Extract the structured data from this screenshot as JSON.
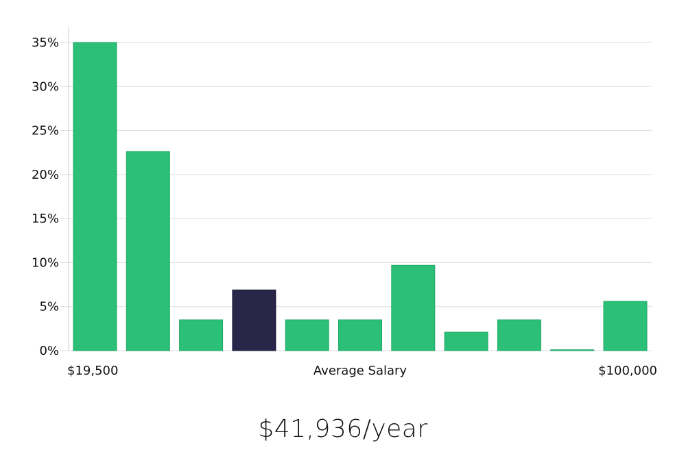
{
  "chart_data": {
    "type": "bar",
    "title": "",
    "xlabel": "Average Salary",
    "ylabel": "",
    "x_min_label": "$19,500",
    "x_max_label": "$100,000",
    "ylim": [
      0,
      35
    ],
    "y_ticks": [
      0,
      5,
      10,
      15,
      20,
      25,
      30,
      35
    ],
    "y_tick_labels": [
      "0%",
      "5%",
      "10%",
      "15%",
      "20%",
      "25%",
      "30%",
      "35%"
    ],
    "grid": true,
    "bins": [
      1,
      2,
      3,
      4,
      5,
      6,
      7,
      8,
      9,
      10,
      11
    ],
    "values": [
      35.0,
      22.6,
      3.5,
      6.9,
      3.5,
      3.5,
      9.7,
      2.1,
      3.5,
      0.1,
      5.6
    ],
    "highlight_index": 3,
    "colors": {
      "bar": "#2bbf77",
      "highlight": "#29264a",
      "grid": "#dddddd",
      "axis": "#cccccc"
    }
  },
  "summary": {
    "average_salary": "$41,936/year"
  }
}
